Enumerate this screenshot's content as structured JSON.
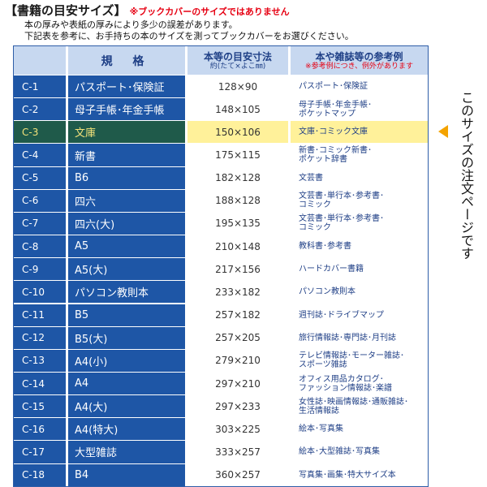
{
  "header": {
    "title": "【書籍の目安サイズ】",
    "warning": "※ブックカバーのサイズではありません",
    "note1": "本の厚みや表紙の厚みにより多少の誤差があります。",
    "note2": "下記表を参考に、お手持ちの本のサイズを測ってブックカバーをお選びください。"
  },
  "table": {
    "head": {
      "spec": "規 格",
      "size_main": "本等の目安寸法",
      "size_sub": "約(たて×よこ㎜)",
      "example_main": "本や雑誌等の参考例",
      "example_sub": "※参考例につき、例外があります"
    },
    "rows": [
      {
        "code": "C-1",
        "spec": "パスポート･保険証",
        "size": "128×90",
        "example": "パスポート･保険証"
      },
      {
        "code": "C-2",
        "spec": "母子手帳･年金手帳",
        "size": "148×105",
        "example": "母子手帳･年金手帳･\nポケットマップ"
      },
      {
        "code": "C-3",
        "spec": "文庫",
        "size": "150×106",
        "example": "文庫･コミック文庫"
      },
      {
        "code": "C-4",
        "spec": "新書",
        "size": "175×115",
        "example": "新書･コミック新書･\nポケット辞書"
      },
      {
        "code": "C-5",
        "spec": "B6",
        "size": "182×128",
        "example": "文芸書"
      },
      {
        "code": "C-6",
        "spec": "四六",
        "size": "188×128",
        "example": "文芸書･単行本･参考書･\nコミック"
      },
      {
        "code": "C-7",
        "spec": "四六(大)",
        "size": "195×135",
        "example": "文芸書･単行本･参考書･\nコミック"
      },
      {
        "code": "C-8",
        "spec": "A5",
        "size": "210×148",
        "example": "教科書･参考書"
      },
      {
        "code": "C-9",
        "spec": "A5(大)",
        "size": "217×156",
        "example": "ハードカバー書籍"
      },
      {
        "code": "C-10",
        "spec": "パソコン教則本",
        "size": "233×182",
        "example": "パソコン教則本"
      },
      {
        "code": "C-11",
        "spec": "B5",
        "size": "257×182",
        "example": "週刊誌･ドライブマップ"
      },
      {
        "code": "C-12",
        "spec": "B5(大)",
        "size": "257×205",
        "example": "旅行情報誌･専門誌･月刊誌"
      },
      {
        "code": "C-13",
        "spec": "A4(小)",
        "size": "279×210",
        "example": "テレビ情報誌･モーター雑誌･\nスポーツ雑誌"
      },
      {
        "code": "C-14",
        "spec": "A4",
        "size": "297×210",
        "example": "オフィス用品カタログ･\nファッション情報誌･楽譜"
      },
      {
        "code": "C-15",
        "spec": "A4(大)",
        "size": "297×233",
        "example": "女性誌･映画情報誌･通販雑誌･\n生活情報誌"
      },
      {
        "code": "C-16",
        "spec": "A4(特大)",
        "size": "303×225",
        "example": "絵本･写真集"
      },
      {
        "code": "C-17",
        "spec": "大型雑誌",
        "size": "333×257",
        "example": "絵本･大型雑誌･写真集"
      },
      {
        "code": "C-18",
        "spec": "B4",
        "size": "360×257",
        "example": "写真集･画集･特大サイズ本"
      }
    ],
    "highlight_code": "C-3"
  },
  "side_note": "このサイズの注文ページです",
  "colors": {
    "header_blue": "#1e56a6",
    "highlight_yellow": "#fff19a",
    "arrow_orange": "#f4a300",
    "warning_red": "#e60012"
  }
}
